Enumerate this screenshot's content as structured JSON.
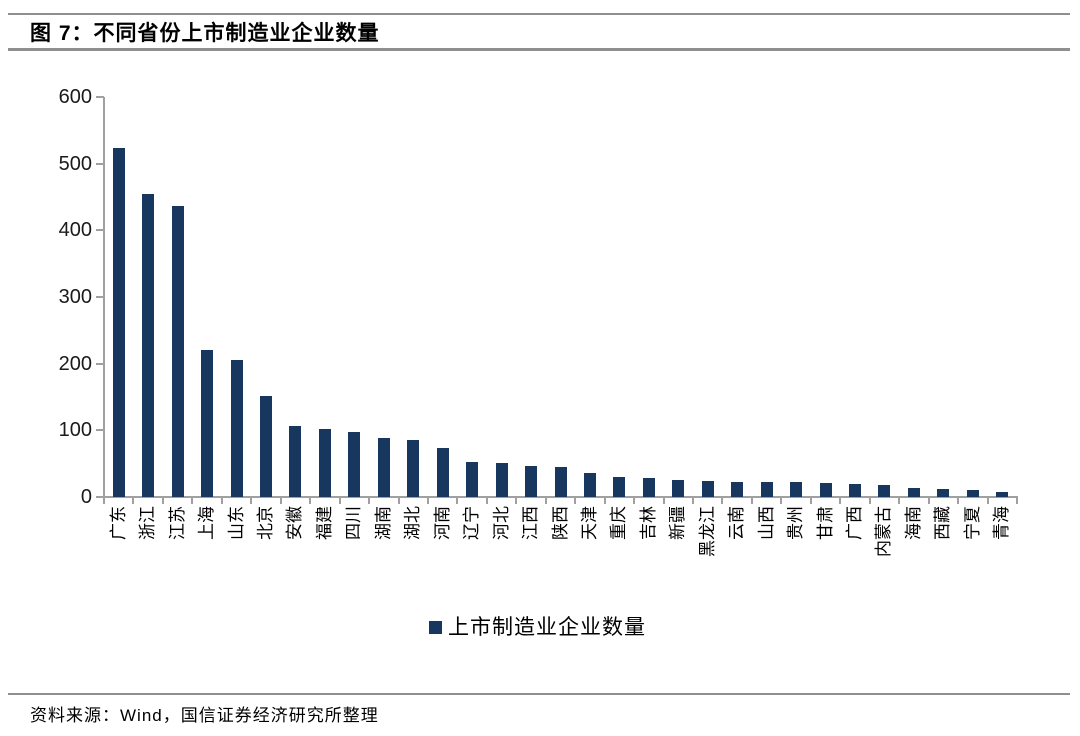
{
  "figure": {
    "title": "图 7：不同省份上市制造业企业数量",
    "source": "资料来源：Wind，国信证券经济研究所整理"
  },
  "chart_data": {
    "type": "bar",
    "title": "不同省份上市制造业企业数量",
    "categories": [
      "广东",
      "浙江",
      "江苏",
      "上海",
      "山东",
      "北京",
      "安徽",
      "福建",
      "四川",
      "湖南",
      "湖北",
      "河南",
      "辽宁",
      "河北",
      "江西",
      "陕西",
      "天津",
      "重庆",
      "吉林",
      "新疆",
      "黑龙江",
      "云南",
      "山西",
      "贵州",
      "甘肃",
      "广西",
      "内蒙古",
      "海南",
      "西藏",
      "宁夏",
      "青海"
    ],
    "values": [
      523,
      455,
      437,
      220,
      205,
      151,
      106,
      102,
      98,
      88,
      85,
      73,
      52,
      51,
      46,
      45,
      36,
      30,
      29,
      26,
      24,
      23,
      23,
      22,
      21,
      19,
      18,
      14,
      12,
      10,
      8
    ],
    "xlabel": "",
    "ylabel": "",
    "ylim": [
      0,
      600
    ],
    "yticks": [
      0,
      100,
      200,
      300,
      400,
      500,
      600
    ],
    "grid": false,
    "legend": [
      {
        "label": "上市制造业企业数量",
        "color": "#17375E"
      }
    ],
    "legend_position": "bottom",
    "bar_color": "#17375E",
    "axis_color": "#A0A0A0"
  }
}
